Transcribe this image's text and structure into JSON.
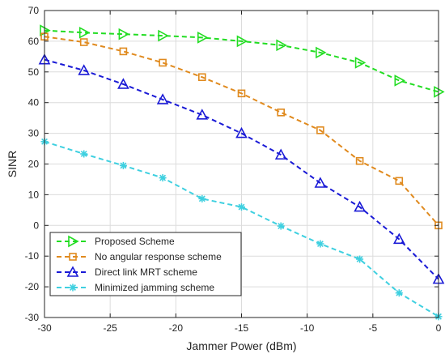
{
  "chart_data": {
    "type": "line",
    "xlabel": "Jammer Power (dBm)",
    "ylabel": "SINR",
    "xlim": [
      -30,
      0
    ],
    "ylim": [
      -30,
      70
    ],
    "x_ticks": [
      -30,
      -25,
      -20,
      -15,
      -10,
      -5,
      0
    ],
    "y_ticks": [
      -30,
      -20,
      -10,
      0,
      10,
      20,
      30,
      40,
      50,
      60,
      70
    ],
    "grid": true,
    "legend_position": "bottom-left",
    "x": [
      -30,
      -27,
      -24,
      -21,
      -18,
      -15,
      -12,
      -9,
      -6,
      -3,
      0
    ],
    "series": [
      {
        "name": "Proposed Scheme",
        "color": "#22dd22",
        "marker": "triangle-right",
        "values": [
          63.5,
          62.8,
          62.3,
          61.8,
          61.2,
          60.0,
          58.7,
          56.3,
          53.0,
          47.2,
          43.5
        ]
      },
      {
        "name": "No angular response scheme",
        "color": "#e08a1e",
        "marker": "square",
        "values": [
          61.5,
          59.7,
          56.7,
          53.0,
          48.3,
          43.0,
          36.8,
          31.0,
          21.0,
          14.5,
          0.0
        ]
      },
      {
        "name": "Direct link MRT scheme",
        "color": "#1a1ad6",
        "marker": "triangle-up",
        "values": [
          54.0,
          50.5,
          46.0,
          41.0,
          36.0,
          30.0,
          23.0,
          13.8,
          6.0,
          -4.5,
          -17.5
        ]
      },
      {
        "name": "Minimized jamming scheme",
        "color": "#3fd0e0",
        "marker": "asterisk",
        "values": [
          27.3,
          23.3,
          19.5,
          15.5,
          8.7,
          6.0,
          -0.2,
          -6.0,
          -11.0,
          -22.0,
          -29.7
        ]
      }
    ]
  }
}
